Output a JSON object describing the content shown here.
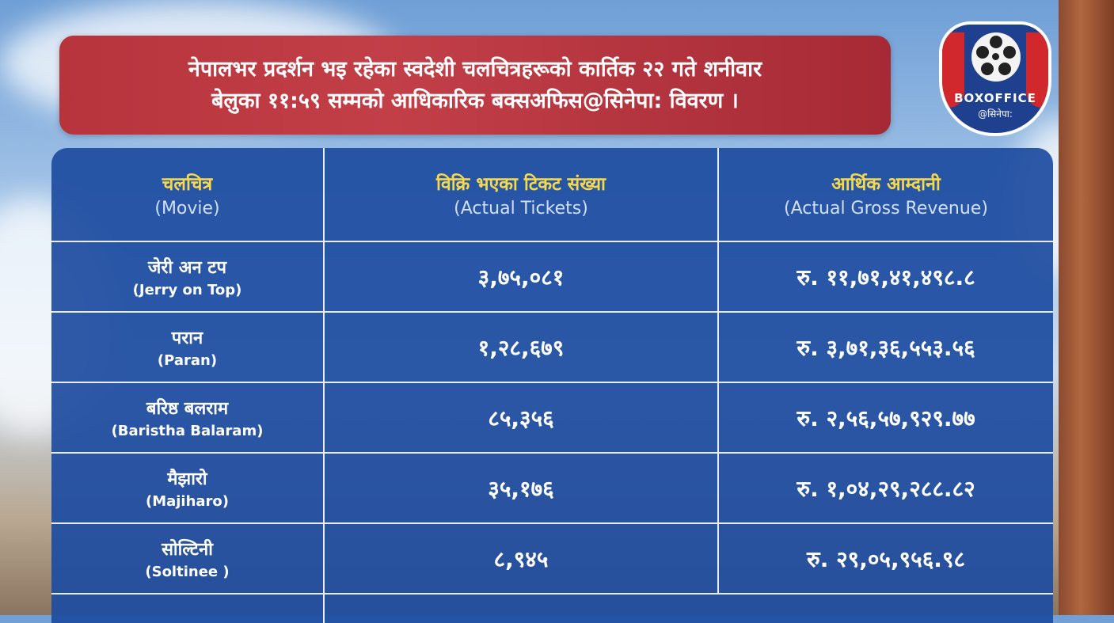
{
  "banner": {
    "line1": "नेपालभर प्रदर्शन भइ रहेका स्वदेशी चलचित्रहरूको कार्तिक २२ गते शनीवार",
    "line2": "बेलुका ११:५९ सम्मको आधिकारिक बक्सअफिस@सिनेपा: विवरण ।",
    "color": "#b8343d"
  },
  "logo": {
    "title": "BOXOFFICE",
    "subtitle": "@सिनेपा:"
  },
  "table": {
    "color": "#1e4ca0",
    "headers": [
      {
        "np": "चलचित्र",
        "en": "(Movie)"
      },
      {
        "np": "विक्रि भएका टिकट संख्या",
        "en": "(Actual Tickets)"
      },
      {
        "np": "आर्थिक आम्दानी",
        "en": "(Actual Gross Revenue)"
      }
    ],
    "rows": [
      {
        "movie_np": "जेरी अन टप",
        "movie_en": "(Jerry on Top)",
        "tickets": "३,७५,०८१",
        "revenue": "रु. ११,७१,४१,४९८.८"
      },
      {
        "movie_np": "परान",
        "movie_en": "(Paran)",
        "tickets": "१,२८,६७९",
        "revenue": "रु. ३,७१,३६,५५३.५६"
      },
      {
        "movie_np": "बरिष्ठ बलराम",
        "movie_en": "(Baristha Balaram)",
        "tickets": "८५,३५६",
        "revenue": "रु. २,५६,५७,९२९.७७"
      },
      {
        "movie_np": "मैझारो",
        "movie_en": "(Majiharo)",
        "tickets": "३५,१७६",
        "revenue": "रु. १,०४,२९,२८८.८२"
      },
      {
        "movie_np": "सोल्टिनी",
        "movie_en": "(Soltinee )",
        "tickets": "८,९४५",
        "revenue": "रु. २९,०५,९५६.९८"
      }
    ]
  }
}
